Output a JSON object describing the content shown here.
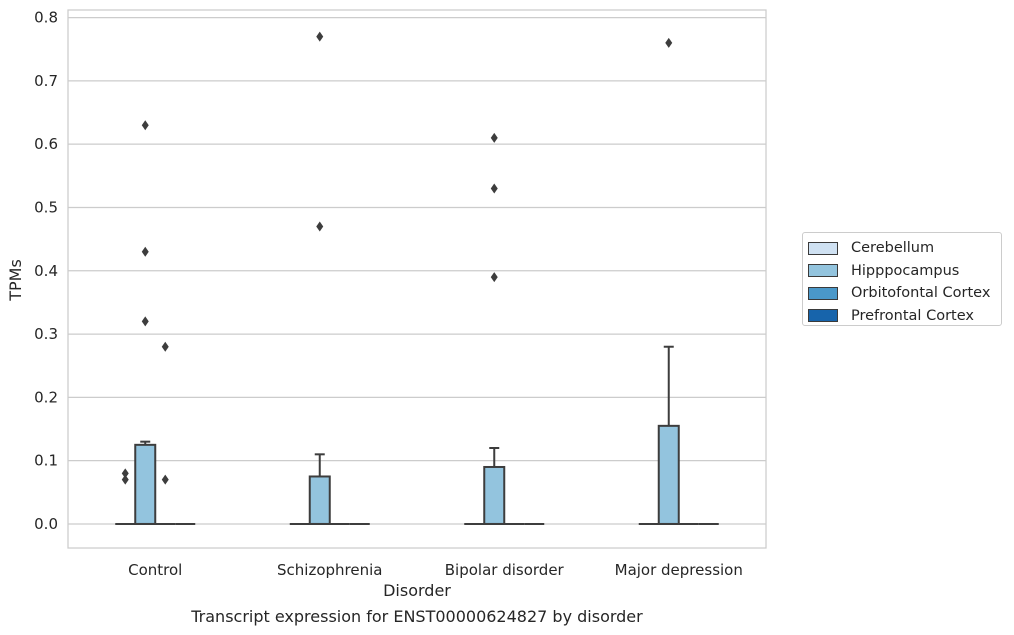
{
  "chart_data": {
    "type": "boxplot",
    "title": "Transcript expression for ENST00000624827 by disorder",
    "xlabel": "Disorder",
    "ylabel": "TPMs",
    "categories": [
      "Control",
      "Schizophrenia",
      "Bipolar disorder",
      "Major depression"
    ],
    "ylim": [
      -0.038,
      0.812
    ],
    "yticks": [
      "0.0",
      "0.1",
      "0.2",
      "0.3",
      "0.4",
      "0.5",
      "0.6",
      "0.7",
      "0.8"
    ],
    "grid": true,
    "legend_placement": "right",
    "series": [
      {
        "name": "Cerebellum",
        "color": "#cfe1f2",
        "boxes": [
          {
            "q1": 0,
            "median": 0,
            "q3": 0,
            "whisker_low": 0,
            "whisker_high": 0,
            "outliers": [
              0.07,
              0.08
            ]
          },
          {
            "q1": 0,
            "median": 0,
            "q3": 0,
            "whisker_low": 0,
            "whisker_high": 0,
            "outliers": []
          },
          {
            "q1": 0,
            "median": 0,
            "q3": 0,
            "whisker_low": 0,
            "whisker_high": 0,
            "outliers": []
          },
          {
            "q1": 0,
            "median": 0,
            "q3": 0,
            "whisker_low": 0,
            "whisker_high": 0,
            "outliers": []
          }
        ]
      },
      {
        "name": "Hipppocampus",
        "color": "#93c4de",
        "boxes": [
          {
            "q1": 0,
            "median": 0,
            "q3": 0.125,
            "whisker_low": 0,
            "whisker_high": 0.13,
            "outliers": [
              0.32,
              0.43,
              0.63
            ]
          },
          {
            "q1": 0,
            "median": 0,
            "q3": 0.075,
            "whisker_low": 0,
            "whisker_high": 0.11,
            "outliers": [
              0.47,
              0.77
            ]
          },
          {
            "q1": 0,
            "median": 0,
            "q3": 0.09,
            "whisker_low": 0,
            "whisker_high": 0.12,
            "outliers": [
              0.39,
              0.53,
              0.61
            ]
          },
          {
            "q1": 0,
            "median": 0,
            "q3": 0.155,
            "whisker_low": 0,
            "whisker_high": 0.28,
            "outliers": [
              0.76
            ]
          }
        ]
      },
      {
        "name": "Orbitofontal Cortex",
        "color": "#4a98c9",
        "boxes": [
          {
            "q1": 0,
            "median": 0,
            "q3": 0,
            "whisker_low": 0,
            "whisker_high": 0,
            "outliers": [
              0.07,
              0.28
            ]
          },
          {
            "q1": 0,
            "median": 0,
            "q3": 0,
            "whisker_low": 0,
            "whisker_high": 0,
            "outliers": []
          },
          {
            "q1": 0,
            "median": 0,
            "q3": 0,
            "whisker_low": 0,
            "whisker_high": 0,
            "outliers": []
          },
          {
            "q1": 0,
            "median": 0,
            "q3": 0,
            "whisker_low": 0,
            "whisker_high": 0,
            "outliers": []
          }
        ]
      },
      {
        "name": "Prefrontal Cortex",
        "color": "#1764ab",
        "boxes": [
          {
            "q1": 0,
            "median": 0,
            "q3": 0,
            "whisker_low": 0,
            "whisker_high": 0,
            "outliers": []
          },
          {
            "q1": 0,
            "median": 0,
            "q3": 0,
            "whisker_low": 0,
            "whisker_high": 0,
            "outliers": []
          },
          {
            "q1": 0,
            "median": 0,
            "q3": 0,
            "whisker_low": 0,
            "whisker_high": 0,
            "outliers": []
          },
          {
            "q1": 0,
            "median": 0,
            "q3": 0,
            "whisker_low": 0,
            "whisker_high": 0,
            "outliers": []
          }
        ]
      }
    ]
  }
}
